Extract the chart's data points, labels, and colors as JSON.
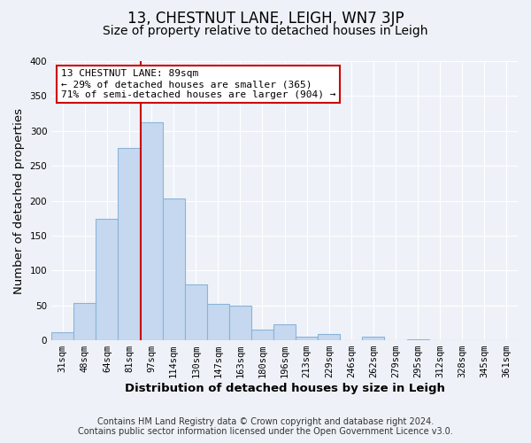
{
  "title": "13, CHESTNUT LANE, LEIGH, WN7 3JP",
  "subtitle": "Size of property relative to detached houses in Leigh",
  "xlabel": "Distribution of detached houses by size in Leigh",
  "ylabel": "Number of detached properties",
  "bar_labels": [
    "31sqm",
    "48sqm",
    "64sqm",
    "81sqm",
    "97sqm",
    "114sqm",
    "130sqm",
    "147sqm",
    "163sqm",
    "180sqm",
    "196sqm",
    "213sqm",
    "229sqm",
    "246sqm",
    "262sqm",
    "279sqm",
    "295sqm",
    "312sqm",
    "328sqm",
    "345sqm",
    "361sqm"
  ],
  "bar_values": [
    11,
    54,
    174,
    276,
    313,
    203,
    80,
    52,
    50,
    15,
    23,
    5,
    9,
    0,
    5,
    0,
    2,
    0,
    0,
    0,
    0
  ],
  "bar_color": "#c5d8f0",
  "bar_edge_color": "#8ab4d8",
  "bar_edge_width": 0.8,
  "vline_color": "#cc0000",
  "annotation_title": "13 CHESTNUT LANE: 89sqm",
  "annotation_line1": "← 29% of detached houses are smaller (365)",
  "annotation_line2": "71% of semi-detached houses are larger (904) →",
  "annotation_box_color": "#ffffff",
  "annotation_box_edge": "#cc0000",
  "ylim": [
    0,
    400
  ],
  "yticks": [
    0,
    50,
    100,
    150,
    200,
    250,
    300,
    350,
    400
  ],
  "footer1": "Contains HM Land Registry data © Crown copyright and database right 2024.",
  "footer2": "Contains public sector information licensed under the Open Government Licence v3.0.",
  "bg_color": "#eef2f8",
  "grid_color": "#ffffff",
  "title_fontsize": 12,
  "subtitle_fontsize": 10,
  "axis_label_fontsize": 9.5,
  "tick_fontsize": 7.5,
  "footer_fontsize": 7,
  "annotation_fontsize": 8
}
